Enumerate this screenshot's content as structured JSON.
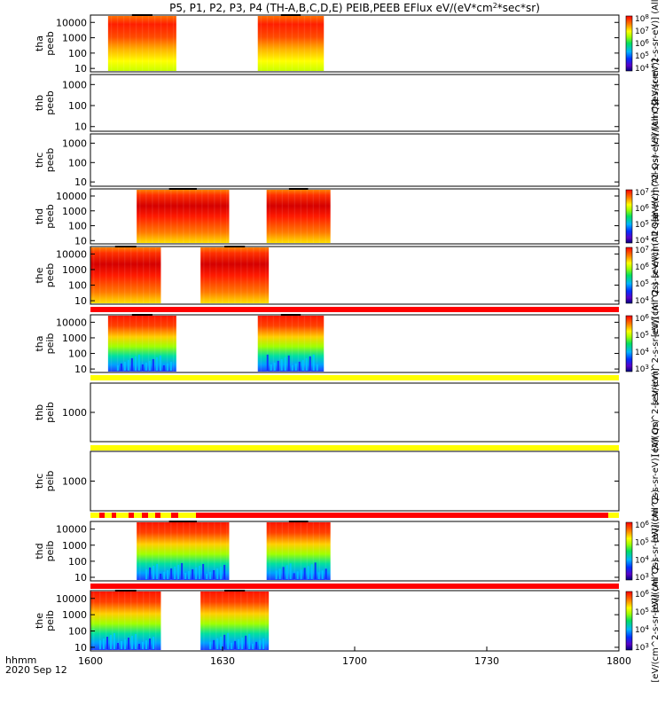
{
  "chart_data": {
    "type": "heatmap",
    "title": "P5, P1, P2, P3, P4 (TH-A,B,C,D,E) PEIB,PEEB EFlux eV/(eV*cm",
    "title_sup": "2",
    "title_tail": "*sec*sr)",
    "date_label": "2020 Sep 12",
    "time_label": "hhmm",
    "x_ticks": [
      "1600",
      "1630",
      "1700",
      "1730",
      "1800"
    ],
    "x_tick_minutes": [
      0,
      30,
      60,
      90,
      120
    ],
    "x_range_minutes": [
      0,
      120
    ],
    "palette": "rainbow",
    "panels": [
      {
        "probe": "tha",
        "product": "peeb",
        "y_scale": "log",
        "y_ticks": [
          "10000",
          "1000",
          "100",
          "10"
        ],
        "y_range": [
          6,
          30000
        ],
        "intervals_minutes": [
          [
            4,
            19.5
          ],
          [
            38,
            53
          ]
        ],
        "colorbar": {
          "ticks": [
            "10^8",
            "10^7",
            "10^6",
            "10^5",
            "10^4"
          ],
          "label": "[eV/(cm^2-s-sr-eV)] (All Qs)"
        }
      },
      {
        "probe": "thb",
        "product": "peeb",
        "y_scale": "log",
        "y_ticks": [
          "1000",
          "100",
          "10"
        ],
        "y_range": [
          6,
          3000
        ],
        "intervals_minutes": [],
        "colorbar": {
          "label": "[eV/(cm^2-s-sr-eV)]"
        }
      },
      {
        "probe": "thc",
        "product": "peeb",
        "y_scale": "log",
        "y_ticks": [
          "1000",
          "100",
          "10"
        ],
        "y_range": [
          6,
          3000
        ],
        "intervals_minutes": [],
        "colorbar": {
          "label": "[eV/(cm^2-s-sr-eV)] (All Qs)"
        }
      },
      {
        "probe": "thd",
        "product": "peeb",
        "y_scale": "log",
        "y_ticks": [
          "10000",
          "1000",
          "100",
          "10"
        ],
        "y_range": [
          6,
          30000
        ],
        "intervals_minutes": [
          [
            10.5,
            31.5
          ],
          [
            40,
            54.5
          ]
        ],
        "colorbar": {
          "ticks": [
            "10^7",
            "10^6",
            "10^5",
            "10^4"
          ],
          "label": "[eV/(cm^2-s-sr-eV)] (All Qs)"
        }
      },
      {
        "probe": "the",
        "product": "peeb",
        "y_scale": "log",
        "y_ticks": [
          "10000",
          "1000",
          "100",
          "10"
        ],
        "y_range": [
          6,
          30000
        ],
        "intervals_minutes": [
          [
            0,
            16
          ],
          [
            25,
            40.5
          ]
        ],
        "colorbar": {
          "ticks": [
            "10^7",
            "10^6",
            "10^5",
            "10^4"
          ],
          "label": "[eV/(cm^2-s-sr-eV)] (All Qs)"
        }
      },
      {
        "probe": "tha",
        "product": "peib",
        "y_scale": "log",
        "y_ticks": [
          "10000",
          "1000",
          "100",
          "10"
        ],
        "y_range": [
          6,
          30000
        ],
        "intervals_minutes": [
          [
            4,
            19.5
          ],
          [
            38,
            53
          ]
        ],
        "colorbar": {
          "ticks": [
            "10^6",
            "10^5",
            "10^4",
            "10^3"
          ],
          "label": "[eV/(cm^2-s-sr-eV)] (All Qs)"
        }
      },
      {
        "probe": "thb",
        "product": "peib",
        "y_scale": "log",
        "y_ticks": [
          "1000"
        ],
        "y_range": [
          100,
          10000
        ],
        "intervals_minutes": [],
        "colorbar": {
          "label": "[eV/(cm^2-s-sr-eV)]"
        }
      },
      {
        "probe": "thc",
        "product": "peib",
        "y_scale": "log",
        "y_ticks": [
          "1000"
        ],
        "y_range": [
          100,
          10000
        ],
        "intervals_minutes": [],
        "colorbar": {
          "label": "[eV/(cm^2-s-sr-eV)] (All Qs)"
        }
      },
      {
        "probe": "thd",
        "product": "peib",
        "y_scale": "log",
        "y_ticks": [
          "10000",
          "1000",
          "100",
          "10"
        ],
        "y_range": [
          6,
          30000
        ],
        "intervals_minutes": [
          [
            10.5,
            31.5
          ],
          [
            40,
            54.5
          ]
        ],
        "colorbar": {
          "ticks": [
            "10^6",
            "10^5",
            "10^4",
            "10^3"
          ],
          "label": "[eV/(cm^2-s-sr-eV)] (All Qs)"
        }
      },
      {
        "probe": "the",
        "product": "peib",
        "y_scale": "log",
        "y_ticks": [
          "10000",
          "1000",
          "100",
          "10"
        ],
        "y_range": [
          6,
          30000
        ],
        "intervals_minutes": [
          [
            0,
            16
          ],
          [
            25,
            40.5
          ]
        ],
        "colorbar": {
          "ticks": [
            "10^6",
            "10^5",
            "10^4",
            "10^3"
          ],
          "label": "[eV/(cm^2-s-sr-eV)] (All Qs)"
        }
      }
    ],
    "status_bars": [
      {
        "after_panel": 4,
        "colors": [
          "#ff0000"
        ]
      },
      {
        "after_panel": 5,
        "colors": [
          "#ffff00"
        ]
      },
      {
        "after_panel": 6,
        "colors": [
          "#ffff00"
        ]
      },
      {
        "after_panel": 7,
        "colors": [
          "#ffff00",
          "#ff0000"
        ]
      },
      {
        "after_panel": 8,
        "colors": [
          "#ff0000"
        ]
      }
    ]
  }
}
